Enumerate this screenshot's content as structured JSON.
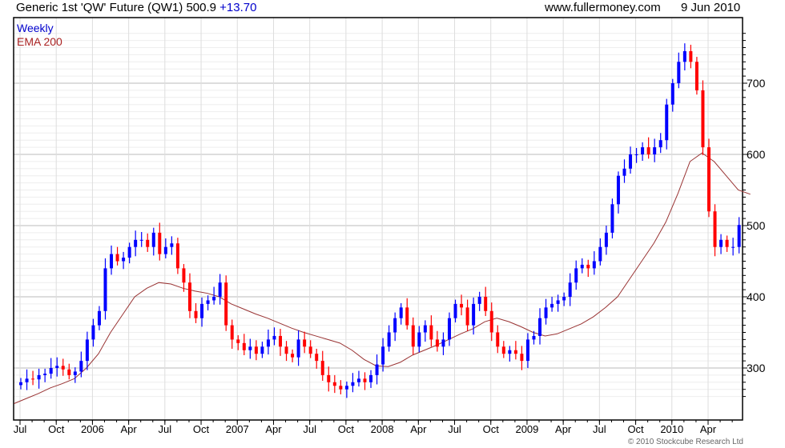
{
  "header": {
    "instrument": "Generic 1st 'QW' Future (QW1)",
    "last": "500.9",
    "change": "+13.70",
    "site": "www.fullermoney.com",
    "date": "9 Jun 2010"
  },
  "footer": {
    "copyright": "© 2010 Stockcube Research Ltd"
  },
  "colors": {
    "up": "#0000ff",
    "down": "#ff0000",
    "ema": "#993333",
    "grid": "#dddddd",
    "grid_major": "#bbbbbb"
  },
  "chart_data": {
    "type": "candlestick",
    "title": "Generic 1st 'QW' Future (QW1)",
    "legend": [
      {
        "label": "Weekly",
        "color": "#0000cc"
      },
      {
        "label": "EMA 200",
        "color": "#aa2222"
      }
    ],
    "legend_position": "top-left",
    "ylim": [
      245,
      775
    ],
    "y_ticks": [
      300,
      400,
      500,
      600,
      700
    ],
    "y_axis_side": "right",
    "x_start": "Jul 2005",
    "x_tick_labels": [
      "Jul",
      "Oct",
      "2006",
      "Apr",
      "Jul",
      "Oct",
      "2007",
      "Apr",
      "Jul",
      "Oct",
      "2008",
      "Apr",
      "Jul",
      "Oct",
      "2009",
      "Apr",
      "Jul",
      "Oct",
      "2010",
      "Apr"
    ],
    "x_tick_month_index": [
      0,
      3,
      6,
      9,
      12,
      15,
      18,
      21,
      24,
      27,
      30,
      33,
      36,
      39,
      42,
      45,
      48,
      51,
      54,
      57
    ],
    "closes_semi_monthly": [
      280,
      285,
      284,
      290,
      292,
      300,
      303,
      298,
      290,
      295,
      310,
      340,
      360,
      380,
      440,
      460,
      450,
      455,
      470,
      480,
      480,
      470,
      490,
      460,
      470,
      475,
      440,
      420,
      380,
      370,
      390,
      395,
      400,
      420,
      360,
      340,
      335,
      325,
      330,
      320,
      330,
      340,
      345,
      330,
      320,
      315,
      340,
      330,
      320,
      310,
      290,
      280,
      275,
      270,
      275,
      280,
      285,
      280,
      290,
      305,
      330,
      350,
      370,
      385,
      360,
      330,
      350,
      360,
      340,
      330,
      340,
      370,
      390,
      385,
      360,
      390,
      400,
      380,
      350,
      330,
      320,
      325,
      320,
      310,
      340,
      345,
      370,
      385,
      390,
      395,
      400,
      420,
      440,
      445,
      440,
      450,
      470,
      490,
      530,
      570,
      580,
      600,
      600,
      610,
      600,
      610,
      620,
      670,
      700,
      730,
      745,
      730,
      690,
      610,
      520,
      470,
      480,
      470,
      470,
      500.9
    ],
    "ema_monthly": [
      250,
      257,
      264,
      272,
      278,
      285,
      300,
      320,
      350,
      375,
      400,
      412,
      420,
      418,
      412,
      408,
      405,
      400,
      390,
      383,
      376,
      370,
      363,
      356,
      350,
      345,
      340,
      335,
      325,
      312,
      303,
      302,
      308,
      318,
      325,
      332,
      340,
      348,
      355,
      365,
      370,
      365,
      358,
      350,
      345,
      348,
      355,
      362,
      372,
      385,
      400,
      425,
      450,
      475,
      505,
      545,
      590,
      602,
      590,
      570,
      550,
      544
    ]
  }
}
